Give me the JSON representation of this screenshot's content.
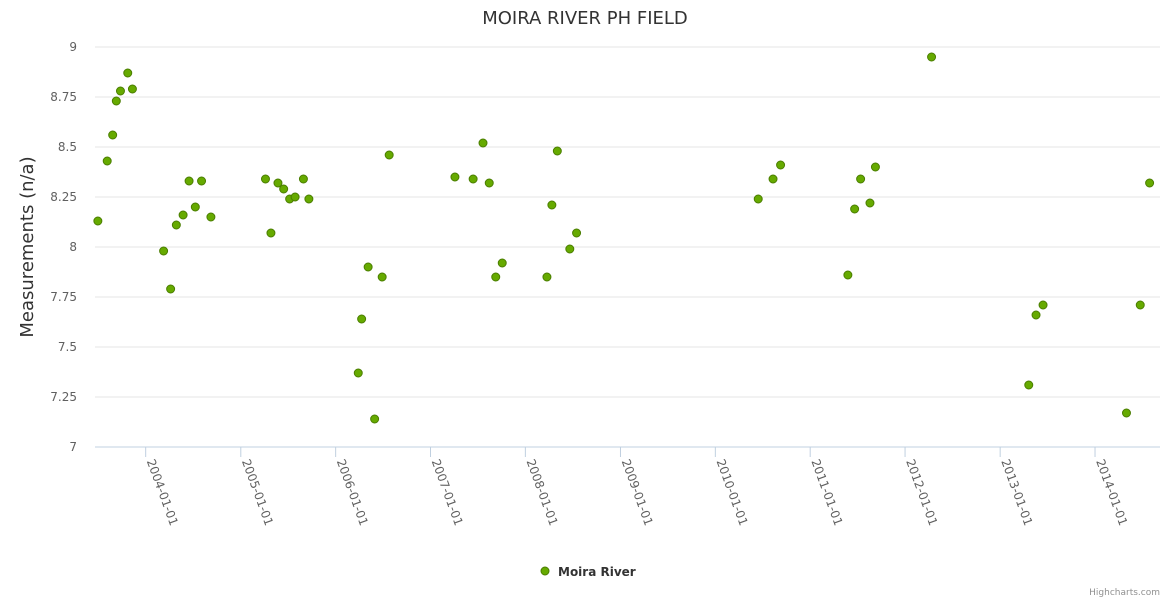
{
  "chart_data": {
    "type": "scatter",
    "title": "MOIRA RIVER PH FIELD",
    "ylabel": "Measurements (n/a)",
    "xlabel": "",
    "ylim": [
      7,
      9
    ],
    "yticks": [
      "7",
      "7.25",
      "7.5",
      "7.75",
      "8",
      "8.25",
      "8.5",
      "8.75",
      "9"
    ],
    "xlim": [
      "2003-06-20",
      "2014-09-08"
    ],
    "xticks": [
      "2004-01-01",
      "2005-01-01",
      "2006-01-01",
      "2007-01-01",
      "2008-01-01",
      "2009-01-01",
      "2010-01-01",
      "2011-01-01",
      "2012-01-01",
      "2013-01-01",
      "2014-01-01"
    ],
    "grid": true,
    "legend_position": "bottom-center",
    "series": [
      {
        "name": "Moira River",
        "color": "#66aa00",
        "border_color": "#4a7d00",
        "points": [
          [
            "2003-07-01",
            8.13
          ],
          [
            "2003-08-06",
            8.43
          ],
          [
            "2003-08-27",
            8.56
          ],
          [
            "2003-09-10",
            8.73
          ],
          [
            "2003-09-26",
            8.78
          ],
          [
            "2003-10-24",
            8.87
          ],
          [
            "2003-11-11",
            8.79
          ],
          [
            "2004-03-10",
            7.98
          ],
          [
            "2004-04-06",
            7.79
          ],
          [
            "2004-04-28",
            8.11
          ],
          [
            "2004-05-24",
            8.16
          ],
          [
            "2004-06-16",
            8.33
          ],
          [
            "2004-07-10",
            8.2
          ],
          [
            "2004-08-03",
            8.33
          ],
          [
            "2004-09-08",
            8.15
          ],
          [
            "2005-04-06",
            8.34
          ],
          [
            "2005-04-27",
            8.07
          ],
          [
            "2005-05-24",
            8.32
          ],
          [
            "2005-06-15",
            8.29
          ],
          [
            "2005-07-08",
            8.24
          ],
          [
            "2005-07-29",
            8.25
          ],
          [
            "2005-08-30",
            8.34
          ],
          [
            "2005-09-20",
            8.24
          ],
          [
            "2006-03-29",
            7.37
          ],
          [
            "2006-04-11",
            7.64
          ],
          [
            "2006-05-06",
            7.9
          ],
          [
            "2006-05-31",
            7.14
          ],
          [
            "2006-06-29",
            7.85
          ],
          [
            "2006-07-26",
            8.46
          ],
          [
            "2007-04-05",
            8.35
          ],
          [
            "2007-06-14",
            8.34
          ],
          [
            "2007-07-22",
            8.52
          ],
          [
            "2007-08-15",
            8.32
          ],
          [
            "2007-09-09",
            7.85
          ],
          [
            "2007-10-04",
            7.92
          ],
          [
            "2008-03-24",
            7.85
          ],
          [
            "2008-04-12",
            8.21
          ],
          [
            "2008-05-03",
            8.48
          ],
          [
            "2008-06-20",
            7.99
          ],
          [
            "2008-07-16",
            8.07
          ],
          [
            "2010-06-15",
            8.24
          ],
          [
            "2010-08-11",
            8.34
          ],
          [
            "2010-09-09",
            8.41
          ],
          [
            "2011-05-26",
            7.86
          ],
          [
            "2011-06-21",
            8.19
          ],
          [
            "2011-07-14",
            8.34
          ],
          [
            "2011-08-19",
            8.22
          ],
          [
            "2011-09-09",
            8.4
          ],
          [
            "2012-04-12",
            8.95
          ],
          [
            "2013-04-21",
            7.31
          ],
          [
            "2013-05-19",
            7.66
          ],
          [
            "2013-06-15",
            7.71
          ],
          [
            "2014-05-02",
            7.17
          ],
          [
            "2014-06-24",
            7.71
          ],
          [
            "2014-07-30",
            8.32
          ]
        ]
      }
    ],
    "credits": "Highcharts.com"
  }
}
